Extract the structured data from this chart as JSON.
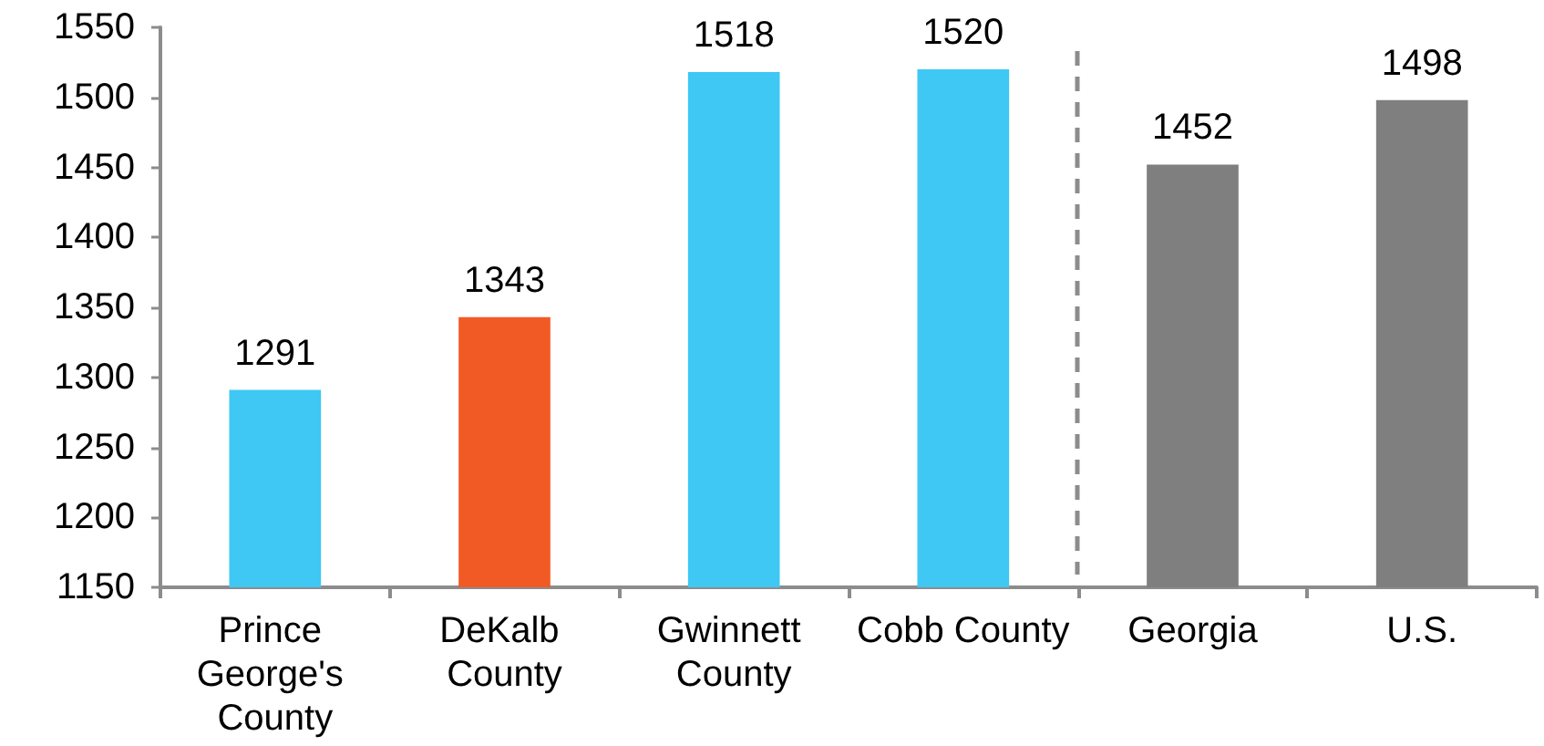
{
  "chart_data": {
    "type": "bar",
    "categories": [
      "Prince George's County",
      "DeKalb County",
      "Gwinnett County",
      "Cobb County",
      "Georgia",
      "U.S."
    ],
    "values": [
      1291,
      1343,
      1518,
      1520,
      1452,
      1498
    ],
    "colors": [
      "#3ec8f3",
      "#f15a24",
      "#3ec8f3",
      "#3ec8f3",
      "#7f7f7f",
      "#7f7f7f"
    ],
    "ylim": [
      1150,
      1550
    ],
    "yticks": [
      1150,
      1200,
      1250,
      1300,
      1350,
      1400,
      1450,
      1500,
      1550
    ],
    "grid": false,
    "data_labels": true
  }
}
